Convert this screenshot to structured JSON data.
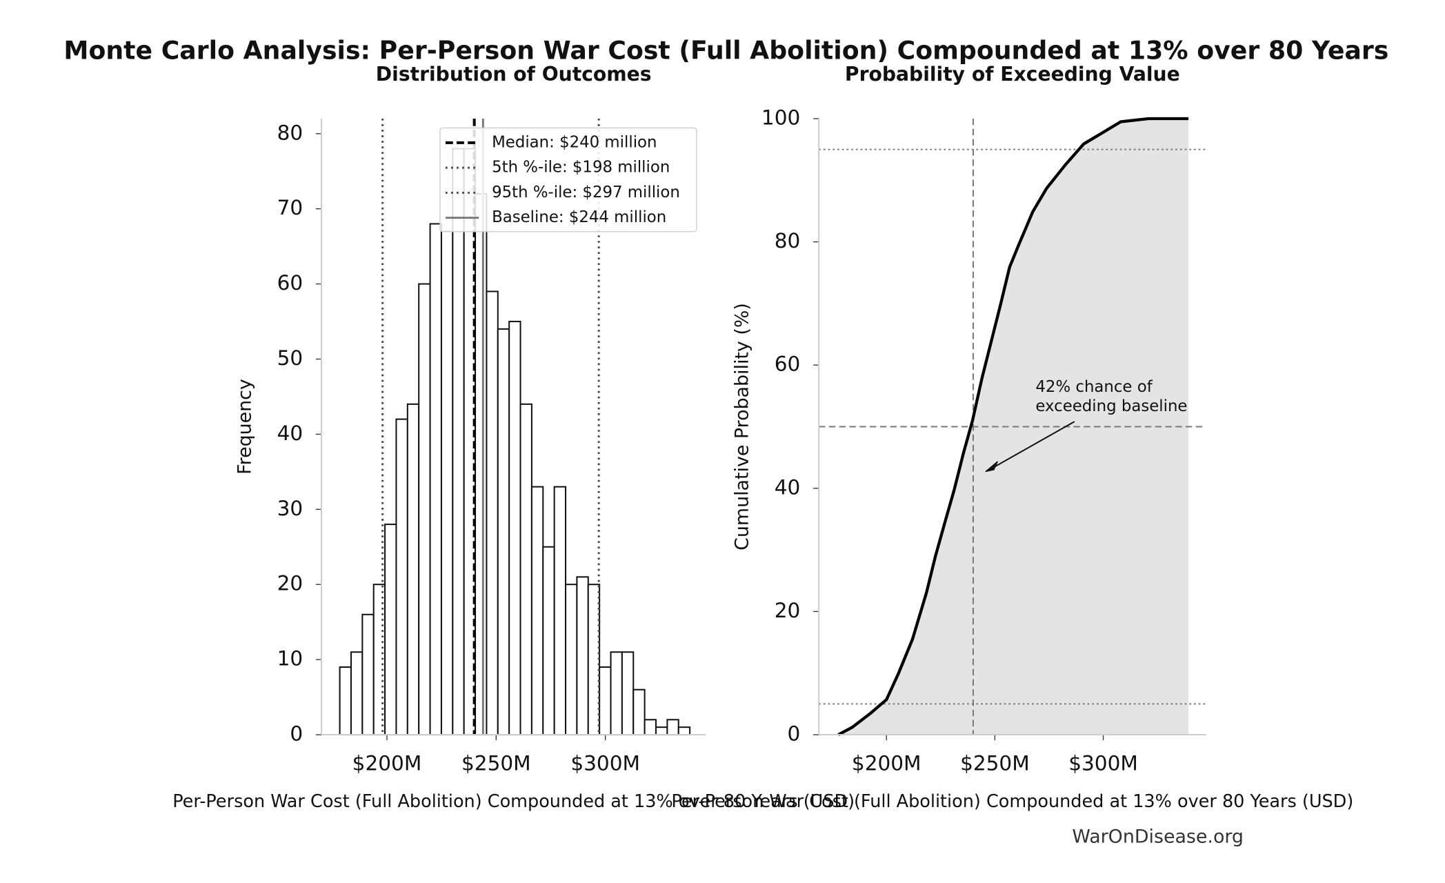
{
  "title": "Monte Carlo Analysis: Per-Person War Cost (Full Abolition) Compounded at 13% over 80 Years",
  "footer": "WarOnDisease.org",
  "chart_data": [
    {
      "type": "histogram",
      "title": "Distribution of Outcomes",
      "x_label": "Per-Person War Cost (Full Abolition) Compounded at 13% over 80 Years (USD)",
      "y_label": "Frequency",
      "bins": [
        178400000,
        183570000,
        188740000,
        193910000,
        199080000,
        204250000,
        209420000,
        214590000,
        219760000,
        224930000,
        230100000,
        235270000,
        240440000,
        245610000,
        250780000,
        255950000,
        261120000,
        266290000,
        271460000,
        276630000,
        281800000,
        286970000,
        292140000,
        297310000,
        302480000,
        307650000,
        312820000,
        317990000,
        323160000,
        328330000,
        333500000,
        338670000
      ],
      "values": [
        9,
        11,
        16,
        20,
        28,
        42,
        44,
        60,
        68,
        67,
        78,
        78,
        72,
        59,
        54,
        55,
        44,
        33,
        25,
        33,
        20,
        21,
        20,
        9,
        11,
        11,
        6,
        2,
        1,
        2,
        1
      ],
      "color": "#ffffff",
      "edgecolor": "#111111",
      "xlim": [
        170000000,
        346000000
      ],
      "xticks": [
        {
          "value": 200000000,
          "label": "$200M"
        },
        {
          "value": 250000000,
          "label": "$250M"
        },
        {
          "value": 300000000,
          "label": "$300M"
        }
      ],
      "ylim": [
        0,
        82
      ],
      "yticks": [
        0,
        10,
        20,
        30,
        40,
        50,
        60,
        70,
        80
      ],
      "legend": "upper right",
      "lines": [
        {
          "name": "Median: $240 million",
          "value": 240000000,
          "color": "#000000",
          "dash": "dashed"
        },
        {
          "name": "5th %-ile: $198 million",
          "value": 198000000,
          "color": "#444444",
          "dash": "dotted"
        },
        {
          "name": "95th %-ile: $297 million",
          "value": 297000000,
          "color": "#444444",
          "dash": "dotted"
        },
        {
          "name": "Baseline: $244 million",
          "value": 244000000,
          "color": "#777777",
          "dash": "solid"
        }
      ]
    },
    {
      "type": "line",
      "title": "Probability of Exceeding Value",
      "x_label": "Per-Person War Cost (Full Abolition) Compounded at 13% over 80 Years (USD)",
      "y_label": "Cumulative Probability (%)",
      "x": [
        177800000,
        184200000,
        192700000,
        200000000,
        205600000,
        212000000,
        218400000,
        222600000,
        226900000,
        231200000,
        235500000,
        239700000,
        244000000,
        248300000,
        252600000,
        256800000,
        261100000,
        267500000,
        273900000,
        282500000,
        291000000,
        299600000,
        308100000,
        320900000,
        339300000
      ],
      "values": [
        0,
        1.2,
        3.5,
        5.7,
        10,
        15.5,
        23,
        29,
        34.4,
        39.7,
        45.7,
        51,
        57.8,
        63.8,
        69.8,
        75.9,
        79.6,
        84.9,
        88.7,
        92.5,
        95.9,
        97.7,
        99.5,
        100,
        100
      ],
      "color": "#000000",
      "fill": "#e4e4e4",
      "xlim": [
        168800000,
        347400000
      ],
      "xticks": [
        {
          "value": 200000000,
          "label": "$200M"
        },
        {
          "value": 250000000,
          "label": "$250M"
        },
        {
          "value": 300000000,
          "label": "$300M"
        }
      ],
      "ylim": [
        0,
        100
      ],
      "yticks": [
        0,
        20,
        40,
        60,
        80,
        100
      ],
      "hlines": [
        5,
        50,
        95
      ],
      "vline": 240000000,
      "annotation": [
        "42% chance of",
        "exceeding baseline"
      ]
    }
  ]
}
